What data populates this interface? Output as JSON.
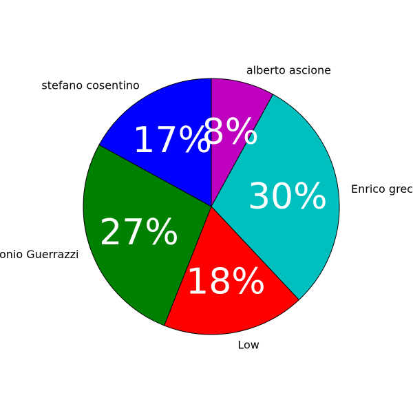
{
  "chart_data": {
    "type": "pie",
    "title": "",
    "start_angle_deg": 90,
    "direction": "clockwise",
    "slices": [
      {
        "label": "alberto ascione",
        "value": 8,
        "pct_label": "8%",
        "color": "#bf00bf"
      },
      {
        "label": "Enrico greco",
        "value": 30,
        "pct_label": "30%",
        "color": "#00bfbf"
      },
      {
        "label": "Low",
        "value": 18,
        "pct_label": "18%",
        "color": "#ff0000"
      },
      {
        "label": "Antonio Guerrazzi",
        "value": 27,
        "pct_label": "27%",
        "color": "#008000"
      },
      {
        "label": "stefano cosentino",
        "value": 17,
        "pct_label": "17%",
        "color": "#0000ff"
      }
    ]
  }
}
